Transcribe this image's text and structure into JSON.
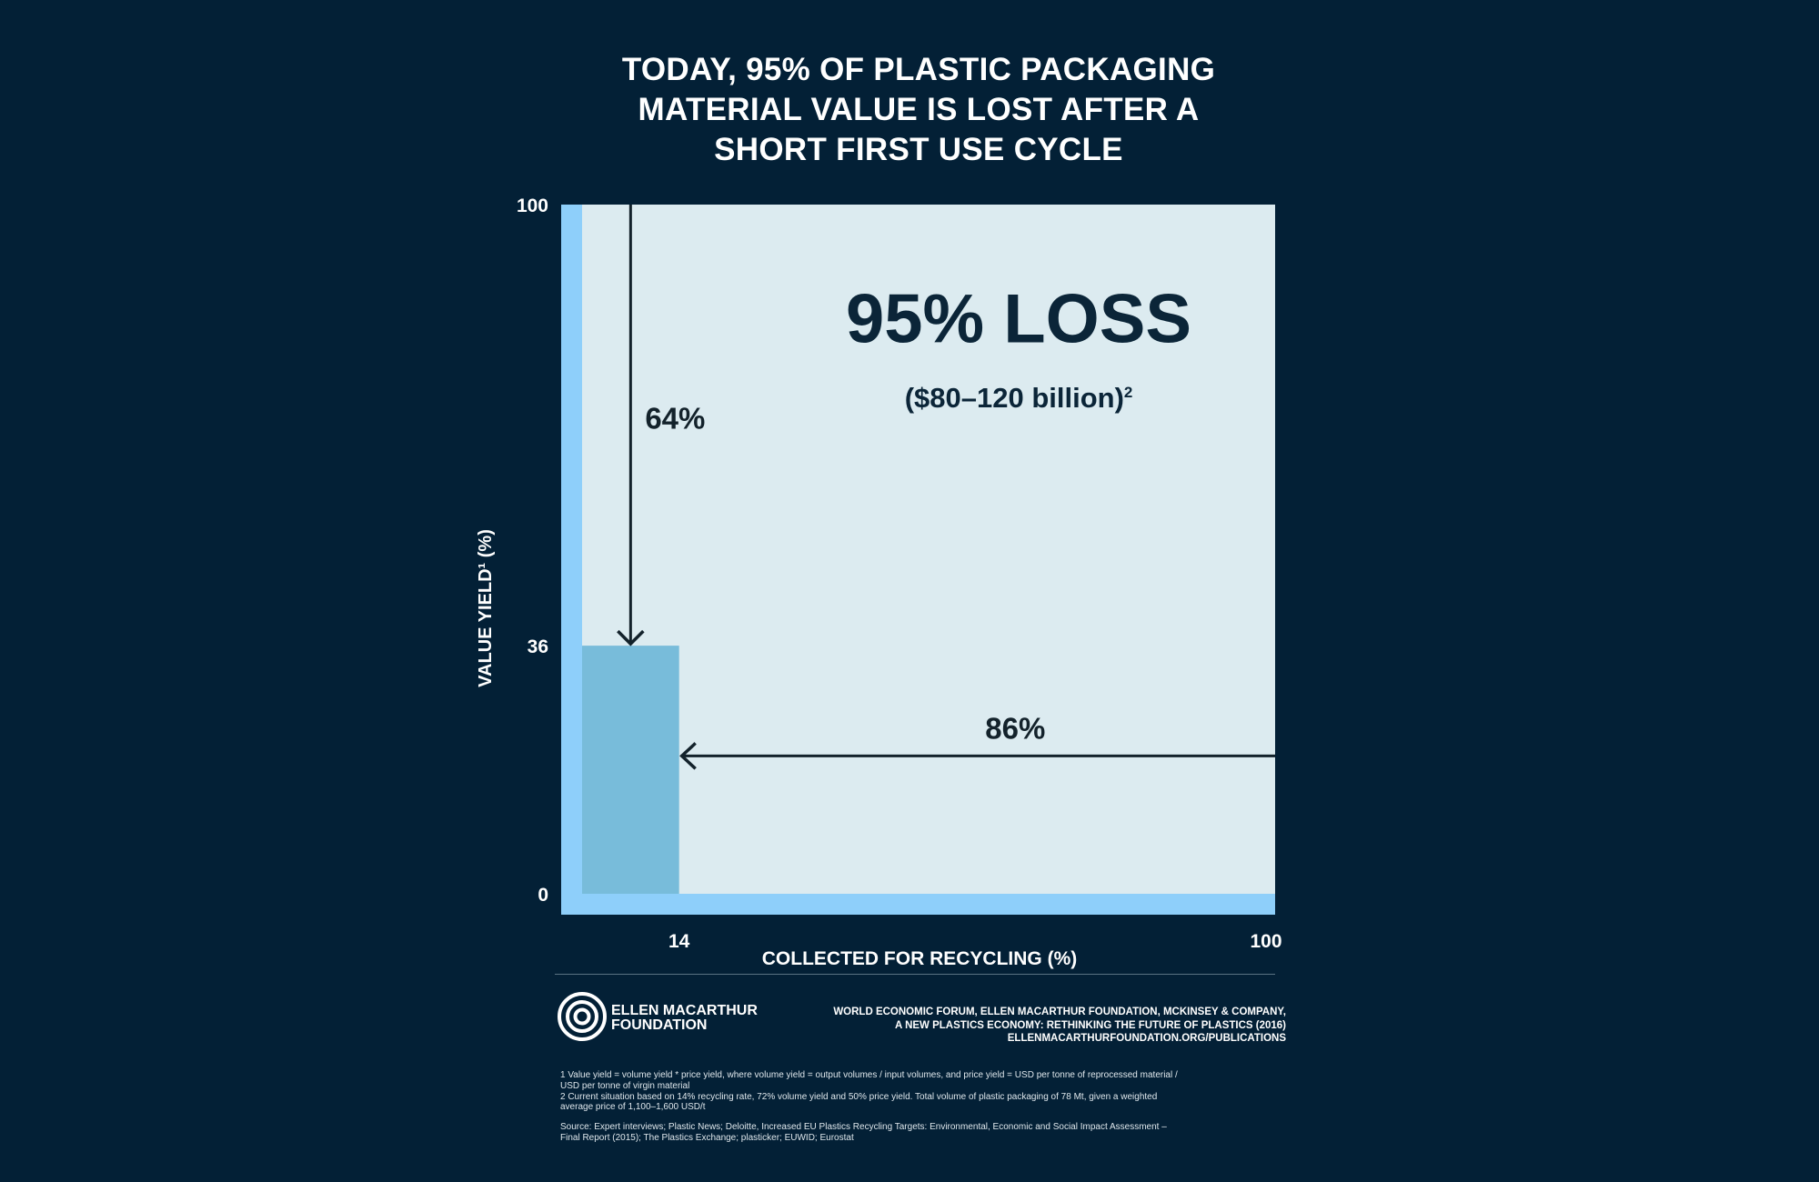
{
  "title_lines": [
    "TODAY, 95% OF PLASTIC PACKAGING",
    "MATERIAL VALUE IS LOST AFTER A",
    "SHORT FIRST USE CYCLE"
  ],
  "chart_data": {
    "type": "area",
    "title": "TODAY, 95% OF PLASTIC PACKAGING MATERIAL VALUE IS LOST AFTER A SHORT FIRST USE CYCLE",
    "xlabel": "COLLECTED FOR RECYCLING (%)",
    "ylabel": "VALUE YIELD¹ (%)",
    "xlim": [
      0,
      100
    ],
    "ylim": [
      0,
      100
    ],
    "x_ticks": [
      14,
      100
    ],
    "y_ticks": [
      0,
      36,
      100
    ],
    "retained_block": {
      "x": [
        0,
        14
      ],
      "y": [
        0,
        36
      ]
    },
    "annotations": [
      {
        "label": "64%",
        "type": "arrow-down",
        "from_y": 100,
        "to_y": 36,
        "at_x": 7
      },
      {
        "label": "86%",
        "type": "arrow-left",
        "from_x": 100,
        "to_x": 14,
        "at_y": 20
      }
    ],
    "loss_label": "95% LOSS",
    "loss_sublabel": "($80–120 billion)",
    "loss_sublabel_sup": "2",
    "colors": {
      "background": "#032036",
      "panel": "#dcebf0",
      "axis_band": "#8ecffa",
      "retained": "#78bcda",
      "ink": "#13222b",
      "navy_text": "#0b2538"
    }
  },
  "logo": {
    "icon": "concentric-circles-logo",
    "lines": [
      "ELLEN MACARTHUR",
      "FOUNDATION"
    ]
  },
  "citation_lines": [
    "WORLD ECONOMIC FORUM, ELLEN MACARTHUR FOUNDATION, MCKINSEY & COMPANY,",
    "A NEW PLASTICS ECONOMY: RETHINKING THE FUTURE OF PLASTICS (2016)",
    "ELLENMACARTHURFOUNDATION.ORG/PUBLICATIONS"
  ],
  "footnotes": [
    "1 Value yield = volume yield * price yield, where volume yield = output volumes / input volumes, and price yield = USD per tonne of reprocessed material / USD per tonne of virgin material",
    "2 Current situation based on 14% recycling rate, 72% volume yield and 50% price yield. Total volume of plastic packaging of 78 Mt, given a weighted average price of 1,100–1,600 USD/t"
  ],
  "source": "Source: Expert interviews; Plastic News; Deloitte, Increased EU Plastics Recycling Targets: Environmental, Economic and Social Impact Assessment – Final Report (2015); The Plastics Exchange; plasticker; EUWID; Eurostat"
}
